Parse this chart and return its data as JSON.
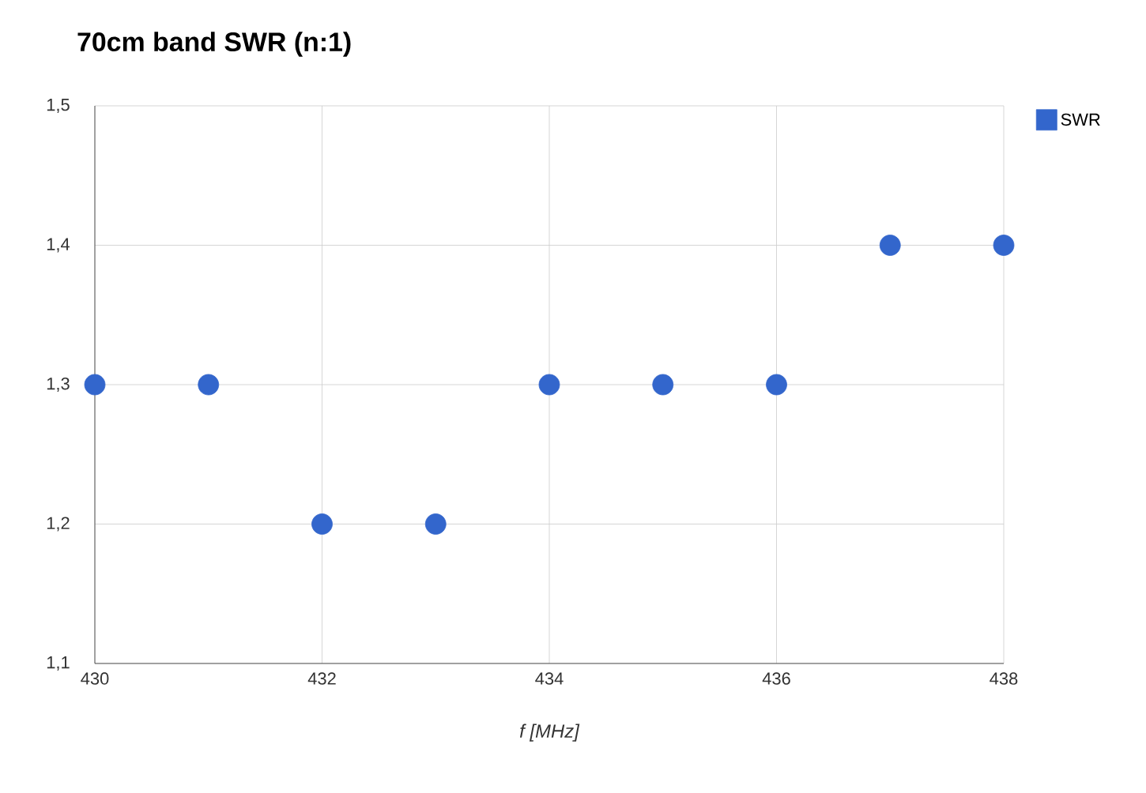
{
  "chart_data": {
    "type": "scatter",
    "title": "70cm band SWR (n:1)",
    "xlabel": "f [MHz]",
    "x": [
      430,
      431,
      432,
      433,
      434,
      435,
      436,
      437,
      438
    ],
    "series": [
      {
        "name": "SWR",
        "color": "#3366cc",
        "values": [
          1.3,
          1.3,
          1.2,
          1.2,
          1.3,
          1.3,
          1.3,
          1.4,
          1.4
        ]
      }
    ],
    "xlim": [
      430,
      438
    ],
    "ylim": [
      1.1,
      1.5
    ],
    "xticks": [
      430,
      432,
      434,
      436,
      438
    ],
    "yticks": [
      {
        "value": 1.1,
        "label": "1,1"
      },
      {
        "value": 1.2,
        "label": "1,2"
      },
      {
        "value": 1.3,
        "label": "1,3"
      },
      {
        "value": 1.4,
        "label": "1,4"
      },
      {
        "value": 1.5,
        "label": "1,5"
      }
    ],
    "grid": true,
    "legend": "right",
    "marker": "circle"
  }
}
